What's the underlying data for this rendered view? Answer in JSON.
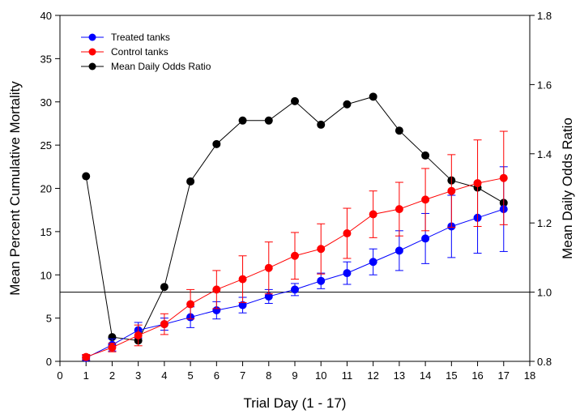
{
  "chart_data": {
    "type": "line",
    "title": "",
    "xlabel": "Trial Day (1 - 17)",
    "ylabel": "Mean Percent Cumulative Mortality",
    "y2label": "Mean Daily Odds Ratio",
    "xlim": [
      0,
      18
    ],
    "ylim": [
      0,
      40
    ],
    "y2lim": [
      0.8,
      1.8
    ],
    "xticks": [
      "0",
      "1",
      "2",
      "3",
      "4",
      "5",
      "6",
      "7",
      "8",
      "9",
      "10",
      "11",
      "12",
      "13",
      "14",
      "15",
      "16",
      "17",
      "18"
    ],
    "yticks": [
      "0",
      "5",
      "10",
      "15",
      "20",
      "25",
      "30",
      "35",
      "40"
    ],
    "y2ticks": [
      "0.8",
      "1.0",
      "1.2",
      "1.4",
      "1.6",
      "1.8"
    ],
    "grid": false,
    "legend_position": "top-left",
    "reference_line": {
      "axis": "y2",
      "value": 1.0
    },
    "x": [
      1,
      2,
      3,
      4,
      5,
      6,
      7,
      8,
      9,
      10,
      11,
      12,
      13,
      14,
      15,
      16,
      17
    ],
    "series": [
      {
        "name": "Treated tanks",
        "axis": "left",
        "color": "#0000ff",
        "values": [
          0.4,
          1.9,
          3.6,
          4.3,
          5.1,
          5.9,
          6.5,
          7.5,
          8.3,
          9.3,
          10.2,
          11.5,
          12.8,
          14.2,
          15.6,
          16.6,
          17.6
        ],
        "error": [
          0.3,
          0.7,
          0.9,
          0.7,
          1.2,
          1.0,
          0.9,
          0.8,
          0.7,
          0.9,
          1.3,
          1.5,
          2.3,
          2.9,
          3.6,
          4.1,
          4.9
        ]
      },
      {
        "name": "Control tanks",
        "axis": "left",
        "color": "#ff0000",
        "values": [
          0.5,
          1.6,
          3.0,
          4.3,
          6.6,
          8.3,
          9.5,
          10.8,
          12.2,
          13.0,
          14.8,
          17.0,
          17.6,
          18.7,
          19.7,
          20.6,
          21.2
        ],
        "error": [
          0.3,
          0.5,
          1.2,
          1.2,
          1.7,
          2.2,
          2.7,
          3.0,
          2.7,
          2.9,
          2.9,
          2.7,
          3.1,
          3.6,
          4.2,
          5.0,
          5.4
        ]
      },
      {
        "name": "Mean Daily Odds Ratio",
        "axis": "right",
        "color": "#000000",
        "values": [
          1.335,
          0.87,
          0.86,
          1.015,
          1.32,
          1.428,
          1.496,
          1.496,
          1.552,
          1.484,
          1.543,
          1.565,
          1.467,
          1.395,
          1.323,
          1.302,
          1.258
        ]
      }
    ]
  }
}
